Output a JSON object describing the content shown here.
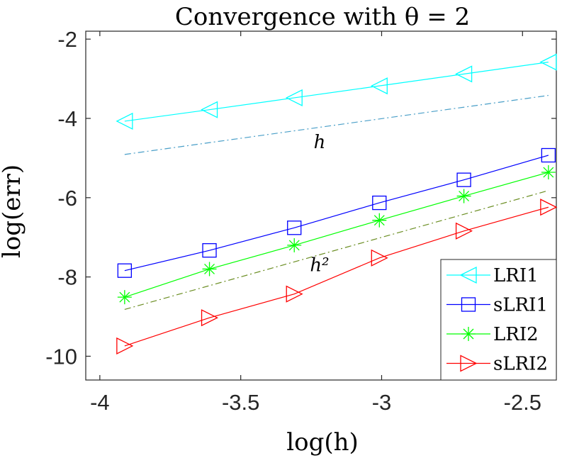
{
  "chart_data": {
    "type": "line",
    "title": "Convergence with θ = 2",
    "xlabel": "log(h)",
    "ylabel": "log(err)",
    "xlim": [
      -4.05,
      -2.38
    ],
    "ylim": [
      -10.6,
      -1.8
    ],
    "x_ticks": [
      -4,
      -3.5,
      -3,
      -2.5
    ],
    "y_ticks": [
      -2,
      -4,
      -6,
      -8,
      -10
    ],
    "x_tick_labels": [
      "-4",
      "-3.5",
      "-3",
      "-2.5"
    ],
    "y_tick_labels": [
      "-2",
      "-4",
      "-6",
      "-8",
      "-10"
    ],
    "grid": false,
    "legend_position": "bottom-right",
    "x": [
      -3.912,
      -3.611,
      -3.31,
      -3.008,
      -2.708,
      -2.408
    ],
    "series": [
      {
        "name": "LRI1",
        "color": "#00ffff",
        "marker": "triangle-left",
        "values": [
          -4.07,
          -3.78,
          -3.48,
          -3.18,
          -2.88,
          -2.58
        ]
      },
      {
        "name": "sLRI1",
        "color": "#0000ff",
        "marker": "square",
        "values": [
          -7.84,
          -7.33,
          -6.76,
          -6.13,
          -5.55,
          -4.93
        ]
      },
      {
        "name": "LRI2",
        "color": "#00ff00",
        "marker": "asterisk",
        "values": [
          -8.51,
          -7.8,
          -7.2,
          -6.57,
          -5.96,
          -5.36
        ]
      },
      {
        "name": "sLRI2",
        "color": "#ff0000",
        "marker": "triangle-right",
        "values": [
          -9.74,
          -9.03,
          -8.43,
          -7.52,
          -6.84,
          -6.24
        ]
      }
    ],
    "reference_lines": [
      {
        "label": "h",
        "color": "#4a9fc8",
        "style": "dash-dot",
        "x": [
          -3.912,
          -2.408
        ],
        "values": [
          -4.91,
          -3.42
        ],
        "label_at": [
          -3.22,
          -4.75
        ]
      },
      {
        "label": "h²",
        "color": "#6b8e23",
        "style": "dash-dot",
        "x": [
          -3.912,
          -2.408
        ],
        "values": [
          -8.82,
          -5.82
        ],
        "label_at": [
          -3.22,
          -7.85
        ]
      }
    ]
  }
}
